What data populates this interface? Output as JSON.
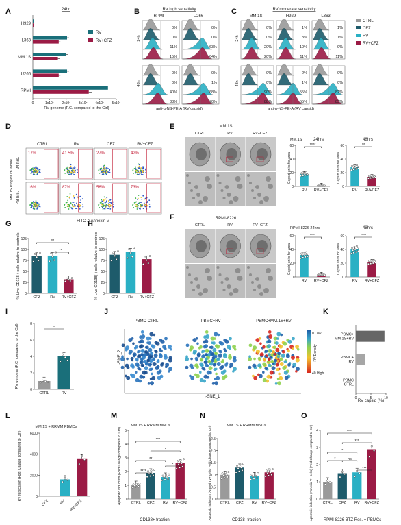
{
  "colors": {
    "rv": "#1a6f7a",
    "rv_cfz": "#9b1b45",
    "cfz": "#1e5b6b",
    "ctrl": "#9a9a9a",
    "rv_light": "#2ab0c4",
    "tsne_blue": "#1f5fa8",
    "tsne_red": "#d8271e"
  },
  "panels": {
    "A": {
      "label": "A",
      "time": "24hr",
      "xlabel": "RV genome (F.C. compared to the Ctrl)",
      "legend": [
        "RV",
        "RV+CFZ"
      ]
    },
    "B": {
      "label": "B",
      "title": "RV high sensitivity",
      "cells": [
        "RPMI",
        "U266"
      ],
      "rows": [
        "24h",
        "48h"
      ],
      "pct": {
        "RPMI": {
          "24h": [
            "0%",
            "0%",
            "11%",
            "15%"
          ],
          "48h": [
            "0%",
            "0%",
            "40%",
            "38%"
          ]
        },
        "U266": {
          "24h": [
            "0%",
            "0%",
            "63%",
            "64%"
          ],
          "48h": [
            "0%",
            "1%",
            "68%",
            "70%"
          ]
        }
      },
      "xlabel": "anti-α-NS-PE-A (RV capsid)"
    },
    "C": {
      "label": "C",
      "title": "RV moderate sensitivity",
      "cells": [
        "MM.1S",
        "H929",
        "L363"
      ],
      "pct": {
        "MM.1S": {
          "24h": [
            "0%",
            "0%",
            "20%",
            "20%"
          ],
          "48h": [
            "0%",
            "0%",
            "90%",
            "88%"
          ]
        },
        "H929": {
          "24h": [
            "1%",
            "3%",
            "10%",
            "11%"
          ],
          "48h": [
            "2%",
            "1%",
            "55%",
            "55%"
          ]
        },
        "L363": {
          "24h": [
            "1%",
            "1%",
            "9%",
            "11%"
          ],
          "48h": [
            "0%",
            "0%",
            "82%",
            "83%"
          ]
        }
      },
      "legend": [
        "CTRL",
        "CFZ",
        "RV",
        "RV+CFZ"
      ],
      "xlabel": "anti-α-NS-PE-A (RV capsid)"
    },
    "D": {
      "label": "D",
      "conds": [
        "CTRL",
        "RV",
        "CFZ",
        "RV+CFZ"
      ],
      "rows": [
        "24 hrs.",
        "48 hrs."
      ],
      "pct": [
        [
          "17%",
          "41.5%",
          "27%",
          "42%"
        ],
        [
          "16%",
          "87%",
          "56%",
          "73%"
        ]
      ],
      "ylabel": "MM.1S Propidium Iodide",
      "xlabel": "FITC-A Annexin V"
    },
    "E": {
      "label": "E",
      "title": "MM.1S",
      "conds": [
        "CTRL",
        "RV",
        "RV+CFZ"
      ],
      "chart_titles": [
        "MM.1S",
        "24hrs",
        "48hrs"
      ],
      "ylabel": "Capsid units for area",
      "sig": [
        "****",
        "**"
      ]
    },
    "F": {
      "label": "F",
      "title": "RPMI-8226",
      "conds": [
        "CTRL",
        "RV",
        "RV+CFZ"
      ],
      "chart_titles": [
        "RPMI-8226 24hrs",
        "48hrs"
      ],
      "ylabel": "Capsid units for area",
      "sig": [
        "****",
        "****"
      ]
    },
    "G": {
      "label": "G",
      "ylabel": "% Live CD138+ cells relative to controls",
      "sig": [
        "**",
        "**"
      ]
    },
    "H": {
      "label": "H",
      "ylabel": "% Live CD138(-) cells relative to controls"
    },
    "I": {
      "label": "I",
      "ylabel": "RV genome (F.C. compared to the Ctrl)",
      "sig": "**"
    },
    "J": {
      "label": "J",
      "titles": [
        "PBMC CTRL",
        "PBMC+RV",
        "PBMC+MM.1S+RV"
      ],
      "xlabel": "t-SNE_1",
      "ylabel": "t-SNE_2",
      "legend_low": "0 Low",
      "legend_high": "40 High",
      "legend_title": "RV Density"
    },
    "K": {
      "label": "K",
      "categories": [
        "PBMC+ MM.1S+RV",
        "PBMC+ RV",
        "PBMC CTRL"
      ],
      "xlabel": "RV capsid (%)"
    },
    "L": {
      "label": "L",
      "title": "MM.1S + RRMM PBMCs",
      "ylabel": "RV replication (Fold Change compared to Ctrl)"
    },
    "M": {
      "label": "M",
      "title": "MM.1S + RRMM MNCs",
      "ylabel": "Apoptotic induction (Fold Change compared to Ctrl)",
      "footer": "CD138+ fraction",
      "sig": [
        "****",
        "**",
        "***",
        "*",
        "*"
      ]
    },
    "N": {
      "label": "N",
      "title": "MM.1S + RRMM MNCs",
      "ylabel": "Apoptotic induction (Annexin V+ cells) Fold Change compared to Ctrl)",
      "footer": "CD138- fraction"
    },
    "O": {
      "label": "O",
      "ylabel": "Apoptotic induction (Annexin V+ cells) (Fold Change compared to Ctrl)",
      "footer": "RPMI-8226 BTZ Res. + PBMCs",
      "sig": [
        "****",
        "***",
        "*",
        "*",
        "ns",
        "***"
      ]
    }
  },
  "chart_data": [
    {
      "type": "bar",
      "panel": "A",
      "orientation": "horizontal",
      "categories": [
        "H929",
        "L363",
        "MM.1S",
        "U266",
        "RPMI"
      ],
      "series": [
        {
          "name": "RV",
          "values": [
            60000,
            2050000,
            2000000,
            2050000,
            4500000
          ]
        },
        {
          "name": "RV+CFZ",
          "values": [
            40000,
            1550000,
            1500000,
            1550000,
            3350000
          ]
        }
      ],
      "xticks": [
        "0",
        "1x10⁶",
        "2x10⁶",
        "3x10⁶",
        "4x10⁶",
        "5x10⁶"
      ],
      "xlim": [
        0,
        5000000
      ]
    },
    {
      "type": "bar",
      "panel": "G",
      "categories": [
        "CFZ",
        "RV",
        "RV+CFZ"
      ],
      "values": [
        85,
        86,
        32
      ],
      "yticks": [
        "0",
        "25",
        "50",
        "75",
        "100",
        "125"
      ],
      "ylim": [
        0,
        125
      ]
    },
    {
      "type": "bar",
      "panel": "H",
      "categories": [
        "CFZ",
        "RV",
        "RV+CFZ"
      ],
      "values": [
        88,
        95,
        78
      ],
      "yticks": [
        "0",
        "25",
        "50",
        "75",
        "100",
        "125"
      ],
      "ylim": [
        0,
        125
      ]
    },
    {
      "type": "bar",
      "panel": "I",
      "categories": [
        "CTRL",
        "RV"
      ],
      "values": [
        1,
        4
      ],
      "yticks": [
        "0",
        "2",
        "4",
        "6",
        "8"
      ],
      "ylim": [
        0,
        8
      ]
    },
    {
      "type": "bar",
      "panel": "K",
      "orientation": "horizontal",
      "categories": [
        "PBMC+ MM.1S+RV",
        "PBMC+ RV",
        "PBMC CTRL"
      ],
      "values": [
        9.5,
        3.0,
        0
      ],
      "xticks": [
        "0",
        "5",
        "10"
      ],
      "xlim": [
        0,
        10
      ]
    },
    {
      "type": "bar",
      "panel": "L",
      "categories": [
        "CFZ",
        "RV",
        "RV+CFZ"
      ],
      "values": [
        0,
        1600,
        3600
      ],
      "yticks": [
        "0",
        "2000",
        "4000",
        "6000"
      ],
      "ylim": [
        0,
        6000
      ]
    },
    {
      "type": "bar",
      "panel": "M",
      "categories": [
        "CTRL",
        "CFZ",
        "RV",
        "RV+CFZ"
      ],
      "values": [
        1.0,
        1.9,
        1.6,
        2.6
      ],
      "yticks": [
        "0",
        "1",
        "2",
        "3",
        "4",
        "5"
      ],
      "ylim": [
        0,
        5
      ]
    },
    {
      "type": "bar",
      "panel": "N",
      "categories": [
        "CTRL",
        "CFZ",
        "RV",
        "RV+CFZ"
      ],
      "values": [
        1.0,
        1.3,
        0.95,
        1.1
      ],
      "yticks": [
        "0.0",
        "0.5",
        "1.0",
        "1.5",
        "2.0",
        "2.5"
      ],
      "ylim": [
        0,
        2.5
      ]
    },
    {
      "type": "bar",
      "panel": "O",
      "categories": [
        "CTRL",
        "CFZ",
        "RV",
        "RV+CFZ"
      ],
      "values": [
        1.0,
        1.5,
        1.55,
        2.9
      ],
      "yticks": [
        "0",
        "1",
        "2",
        "3",
        "4"
      ],
      "ylim": [
        0,
        4
      ]
    },
    {
      "type": "bar",
      "panel": "E-24hrs",
      "categories": [
        "RV",
        "RV+CFZ"
      ],
      "values": [
        18,
        1
      ],
      "yticks": [
        "0",
        "20",
        "40",
        "60"
      ],
      "ylim": [
        0,
        60
      ]
    },
    {
      "type": "bar",
      "panel": "E-48hrs",
      "categories": [
        "RV",
        "RV+CFZ"
      ],
      "values": [
        28,
        14
      ],
      "yticks": [
        "0",
        "20",
        "40",
        "60"
      ],
      "ylim": [
        0,
        60
      ]
    },
    {
      "type": "bar",
      "panel": "F-24hrs",
      "categories": [
        "RV",
        "RV+CFZ"
      ],
      "values": [
        32,
        3
      ],
      "yticks": [
        "0",
        "20",
        "40",
        "60"
      ],
      "ylim": [
        0,
        60
      ]
    },
    {
      "type": "bar",
      "panel": "F-48hrs",
      "categories": [
        "RV",
        "RV+CFZ"
      ],
      "values": [
        40,
        22
      ],
      "yticks": [
        "0",
        "20",
        "40",
        "60"
      ],
      "ylim": [
        0,
        60
      ]
    }
  ]
}
